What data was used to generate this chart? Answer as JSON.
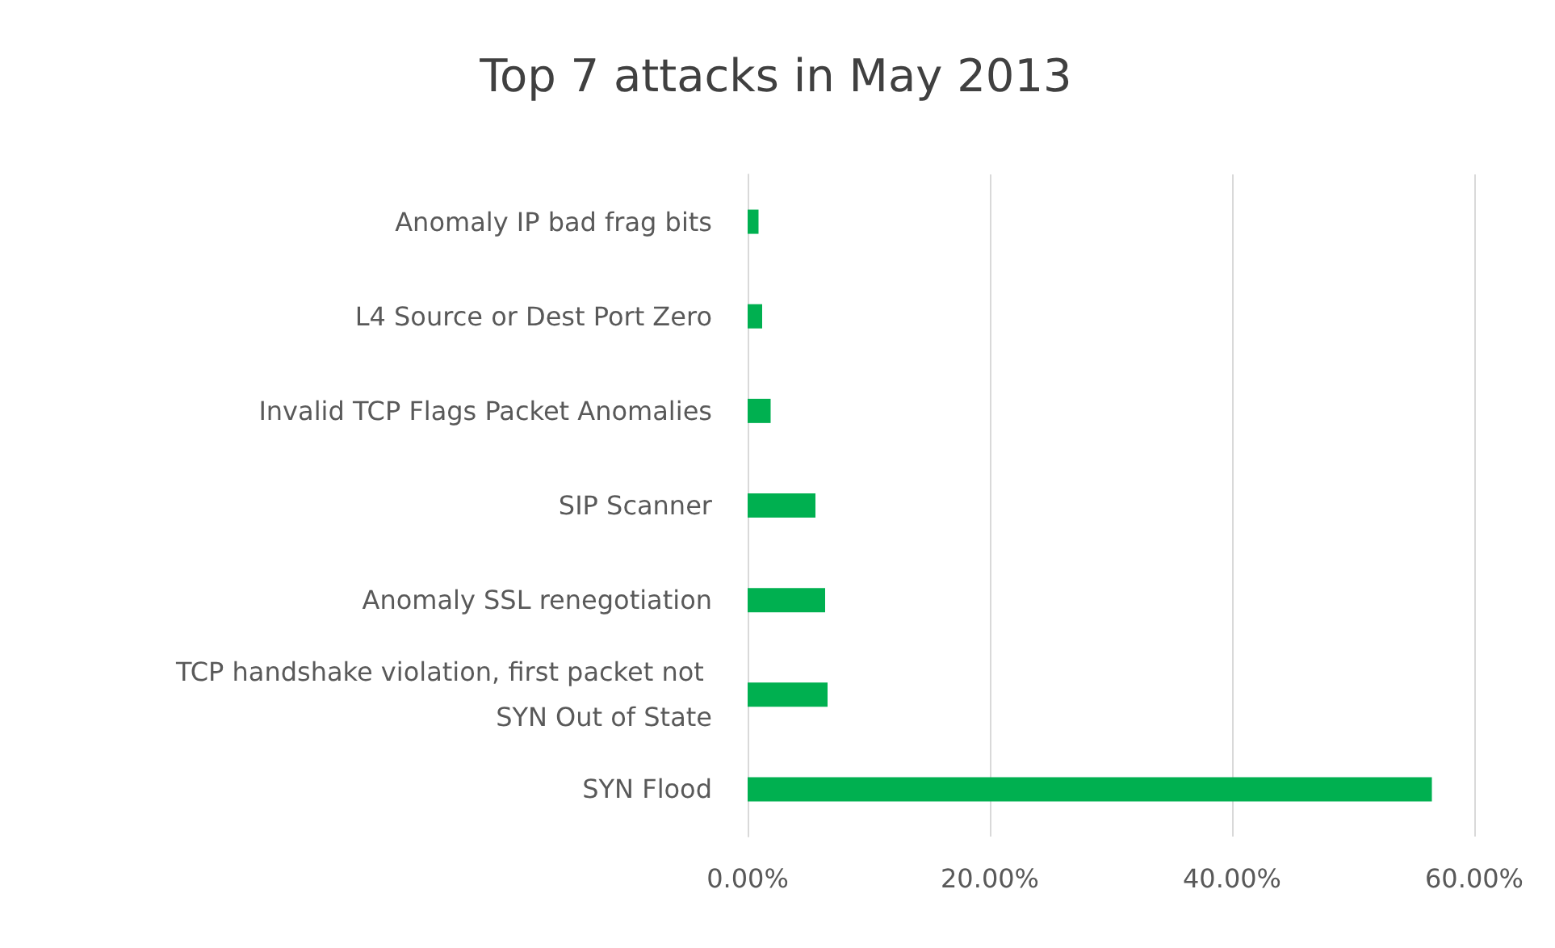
{
  "chart_data": {
    "type": "bar",
    "orientation": "horizontal",
    "title": "Top 7 attacks in May 2013",
    "categories": [
      "Anomaly IP bad frag bits",
      "L4 Source or Dest Port Zero",
      "Invalid TCP Flags Packet Anomalies",
      "SIP Scanner",
      "Anomaly SSL renegotiation",
      "TCP handshake violation, first packet not SYN Out of State",
      "SYN Flood"
    ],
    "values": [
      0.9,
      1.2,
      1.9,
      5.6,
      6.4,
      6.6,
      56.5
    ],
    "color": "#00b050",
    "xlim": [
      0,
      60
    ],
    "xticks": [
      {
        "value": 0,
        "label": "0.00%"
      },
      {
        "value": 20,
        "label": "20.00%"
      },
      {
        "value": 40,
        "label": "40.00%"
      },
      {
        "value": 60,
        "label": "60.00%"
      }
    ],
    "grid": "x"
  }
}
